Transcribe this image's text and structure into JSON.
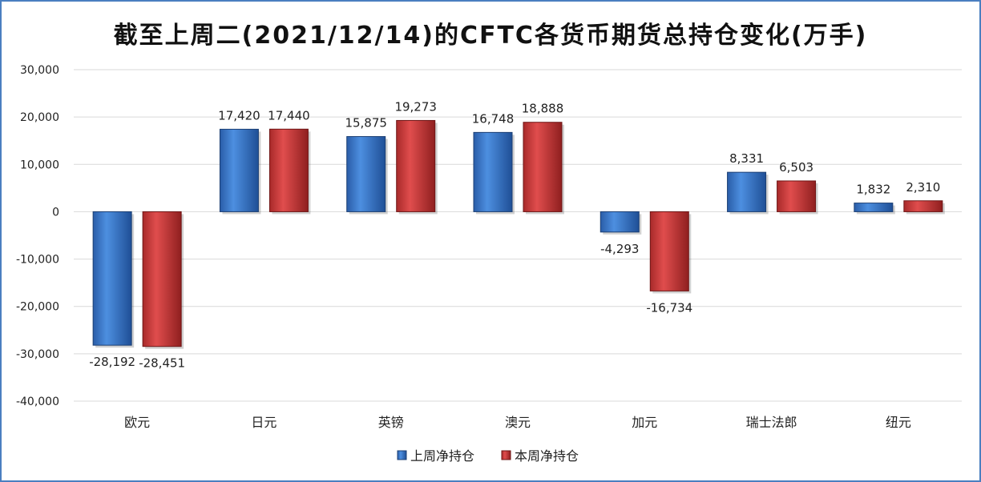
{
  "chart_data": {
    "type": "bar",
    "title": "截至上周二(2021/12/14)的CFTC各货币期货总持仓变化(万手)",
    "xlabel": "",
    "ylabel": "",
    "ylim": [
      -40000,
      30000
    ],
    "ytick_step": 10000,
    "yticks": [
      "30,000",
      "20,000",
      "10,000",
      "0",
      "-10,000",
      "-20,000",
      "-30,000",
      "-40,000"
    ],
    "grid": true,
    "legend_position": "bottom",
    "categories": [
      "欧元",
      "日元",
      "英镑",
      "澳元",
      "加元",
      "瑞士法郎",
      "纽元"
    ],
    "series": [
      {
        "name": "上周净持仓",
        "color": "#3a78c9",
        "values": [
          -28192,
          17420,
          15875,
          16748,
          -4293,
          8331,
          1832
        ],
        "labels": [
          "-28,192",
          "17,420",
          "15,875",
          "16,748",
          "-4,293",
          "8,331",
          "1,832"
        ]
      },
      {
        "name": "本周净持仓",
        "color": "#c43a3a",
        "values": [
          -28451,
          17440,
          19273,
          18888,
          -16734,
          6503,
          2310
        ],
        "labels": [
          "-28,451",
          "17,440",
          "19,273",
          "18,888",
          "-16,734",
          "6,503",
          "2,310"
        ]
      }
    ]
  }
}
